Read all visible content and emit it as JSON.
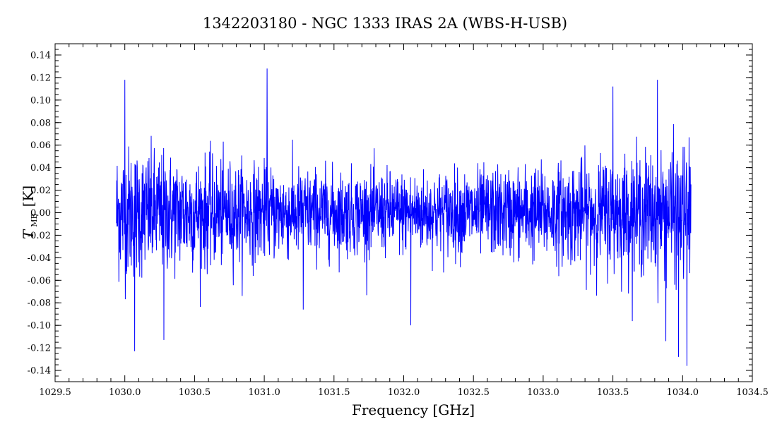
{
  "chart_data": {
    "type": "line",
    "title": "1342203180 - NGC 1333 IRAS 2A (WBS-H-USB)",
    "xlabel": "Frequency [GHz]",
    "ylabel": "T",
    "ylabel_subscript": "MB",
    "ylabel_unit": "[K]",
    "xlim": [
      1029.5,
      1034.5
    ],
    "ylim": [
      -0.15,
      0.15
    ],
    "x_ticks": [
      "1029.5",
      "1030.0",
      "1030.5",
      "1031.0",
      "1031.5",
      "1032.0",
      "1032.5",
      "1033.0",
      "1033.5",
      "1034.0",
      "1034.5"
    ],
    "y_ticks": [
      "-0.14",
      "-0.12",
      "-0.10",
      "-0.08",
      "-0.06",
      "-0.04",
      "-0.02",
      "0.00",
      "0.02",
      "0.04",
      "0.06",
      "0.08",
      "0.10",
      "0.12",
      "0.14"
    ],
    "grid": false,
    "series": [
      {
        "color": "#0000ff",
        "x_range": [
          1029.94,
          1034.06
        ],
        "num_points": 2400,
        "noise_rms_edges": 0.03,
        "noise_rms_center": 0.018,
        "mean": 0.0,
        "extreme_points": [
          {
            "x": 1030.0,
            "y": 0.118
          },
          {
            "x": 1030.07,
            "y": -0.123
          },
          {
            "x": 1030.28,
            "y": -0.113
          },
          {
            "x": 1031.02,
            "y": 0.128
          },
          {
            "x": 1031.28,
            "y": -0.086
          },
          {
            "x": 1032.05,
            "y": -0.1
          },
          {
            "x": 1033.5,
            "y": 0.112
          },
          {
            "x": 1033.82,
            "y": 0.118
          },
          {
            "x": 1033.88,
            "y": -0.114
          },
          {
            "x": 1033.97,
            "y": -0.128
          },
          {
            "x": 1034.03,
            "y": -0.136
          }
        ]
      }
    ]
  }
}
